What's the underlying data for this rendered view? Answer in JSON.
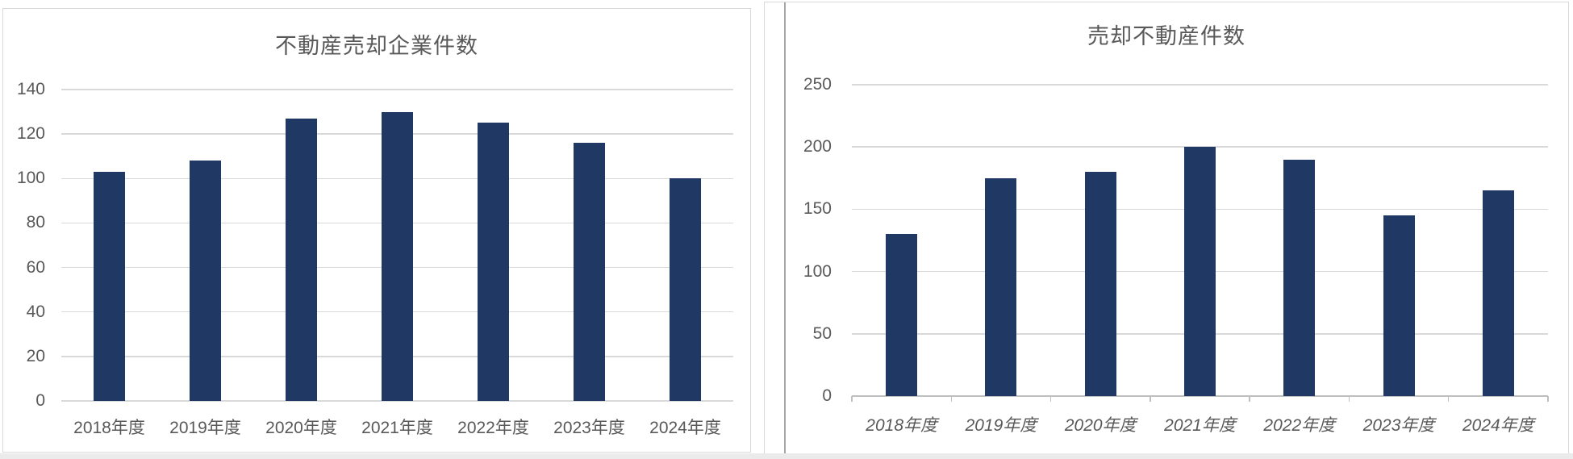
{
  "chart_data": [
    {
      "type": "bar",
      "title": "不動産売却企業件数",
      "categories": [
        "2018年度",
        "2019年度",
        "2020年度",
        "2021年度",
        "2022年度",
        "2023年度",
        "2024年度"
      ],
      "values": [
        103,
        108,
        127,
        130,
        125,
        116,
        100
      ],
      "xlabel": "",
      "ylabel": "",
      "ylim": [
        0,
        140
      ],
      "yticks": [
        0,
        20,
        40,
        60,
        80,
        100,
        120,
        140
      ],
      "grid": true,
      "legend": "none",
      "x_axis_line": false,
      "x_tick_marks": false,
      "xtick_style": "normal",
      "bar_color": "#1f3864",
      "title_color": "#595959",
      "tick_color": "#595959",
      "gridline_color": "#d9d9d9"
    },
    {
      "type": "bar",
      "title": "売却不動産件数",
      "categories": [
        "2018年度",
        "2019年度",
        "2020年度",
        "2021年度",
        "2022年度",
        "2023年度",
        "2024年度"
      ],
      "values": [
        130,
        175,
        180,
        200,
        190,
        145,
        165
      ],
      "xlabel": "",
      "ylabel": "",
      "ylim": [
        0,
        250
      ],
      "yticks": [
        0,
        50,
        100,
        150,
        200,
        250
      ],
      "grid": true,
      "legend": "none",
      "x_axis_line": true,
      "x_tick_marks": true,
      "xtick_style": "italic",
      "bar_color": "#1f3864",
      "title_color": "#595959",
      "tick_color": "#595959",
      "gridline_color": "#d9d9d9",
      "axis_line_color": "#bfbfbf"
    }
  ]
}
